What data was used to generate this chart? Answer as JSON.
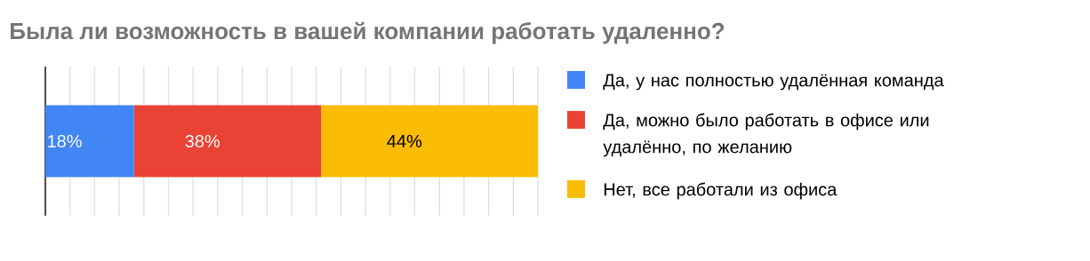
{
  "chart_data": {
    "type": "bar",
    "orientation": "horizontal",
    "stacked": true,
    "title": "Была ли возможность в вашей компании работать удаленно?",
    "categories": [
      null
    ],
    "series": [
      {
        "name": "Да, у нас полностью удалённая команда",
        "color": "#4285f4",
        "values": [
          18
        ],
        "value_labels": [
          "18%"
        ]
      },
      {
        "name": "Да, можно было работать в офисе или удалённо, по желанию",
        "color": "#ea4335",
        "values": [
          38
        ],
        "value_labels": [
          "38%"
        ]
      },
      {
        "name": "Нет, все работали из офиса",
        "color": "#fbbc04",
        "values": [
          44
        ],
        "value_labels": [
          "44%"
        ]
      }
    ],
    "xlim": [
      0,
      100
    ],
    "xticks": [
      0,
      5,
      10,
      15,
      20,
      25,
      30,
      35,
      40,
      45,
      50,
      55,
      60,
      65,
      70,
      75,
      80,
      85,
      90,
      95,
      100
    ],
    "grid": "x",
    "tick_labels": false,
    "legend": "right"
  }
}
